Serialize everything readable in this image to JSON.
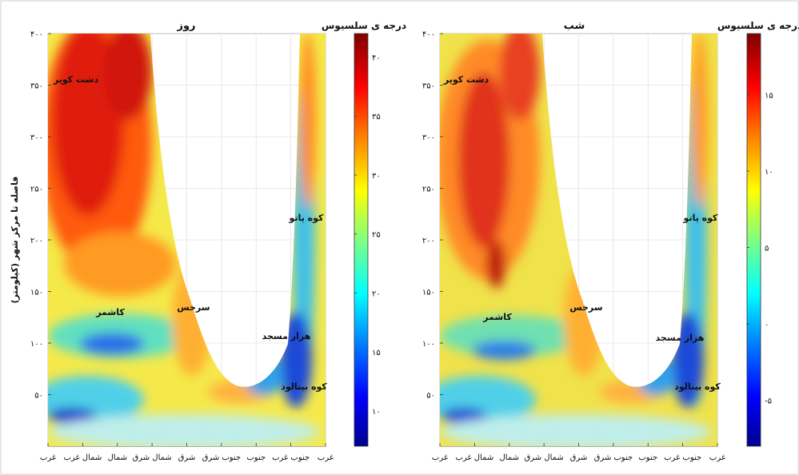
{
  "chart_data": [
    {
      "type": "heatmap",
      "title": "روز",
      "ylabel": "فاصله تا مرکز شهر (کیلومتر)",
      "ylim": [
        0,
        400
      ],
      "y_ticks": [
        "۴۰۰",
        "۳۵۰",
        "۳۰۰",
        "۲۵۰",
        "۲۰۰",
        "۱۵۰",
        "۱۰۰",
        "۵۰"
      ],
      "x_ticks": [
        "غرب",
        "جنوب غرب",
        "جنوب",
        "جنوب شرق",
        "شرق",
        "شمال شرق",
        "شمال",
        "شمال غرب",
        "غرب"
      ],
      "colorbar": {
        "label": "درجه ی سلسیوس",
        "min": 7,
        "max": 42,
        "ticks": [
          "۴۰",
          "۳۵",
          "۳۰",
          "۲۵",
          "۲۰",
          "۱۵",
          "۱۰"
        ]
      },
      "annotations": [
        "دشت کویر",
        "کاشمر",
        "سرخس",
        "کوه پاتو",
        "هزار مسجد",
        "کوه بینالود"
      ]
    },
    {
      "type": "heatmap",
      "title": "شب",
      "ylim": [
        0,
        400
      ],
      "y_ticks": [
        "۴۰۰",
        "۳۵۰",
        "۳۰۰",
        "۲۵۰",
        "۲۰۰",
        "۱۵۰",
        "۱۰۰",
        "۵۰"
      ],
      "x_ticks": [
        "غرب",
        "جنوب غرب",
        "جنوب",
        "جنوب شرق",
        "شرق",
        "شمال شرق",
        "شمال",
        "شمال غرب",
        "غرب"
      ],
      "colorbar": {
        "label": "درجه ی سلسیوس",
        "min": -8,
        "max": 19,
        "ticks": [
          "۱۵",
          "۱۰",
          "۵",
          "۰",
          "-۵"
        ]
      },
      "annotations": [
        "دشت کویر",
        "کاشمر",
        "سرخس",
        "کوه پاتو",
        "هزار مسجد",
        "کوه بینالود"
      ]
    }
  ],
  "colors": {
    "jet": [
      "#00008f",
      "#0000ff",
      "#0080ff",
      "#00ffff",
      "#80ff80",
      "#ffff00",
      "#ff8000",
      "#ff0000",
      "#800000"
    ]
  }
}
